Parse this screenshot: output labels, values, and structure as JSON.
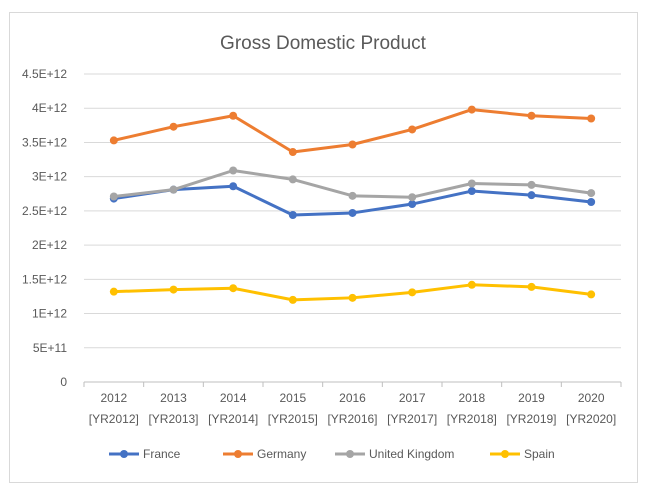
{
  "chart_data": {
    "type": "line",
    "title": "Gross Domestic Product",
    "xlabel": "",
    "ylabel": "",
    "categories": [
      [
        "2012",
        "[YR2012]"
      ],
      [
        "2013",
        "[YR2013]"
      ],
      [
        "2014",
        "[YR2014]"
      ],
      [
        "2015",
        "[YR2015]"
      ],
      [
        "2016",
        "[YR2016]"
      ],
      [
        "2017",
        "[YR2017]"
      ],
      [
        "2018",
        "[YR2018]"
      ],
      [
        "2019",
        "[YR2019]"
      ],
      [
        "2020",
        "[YR2020]"
      ]
    ],
    "ylim": [
      0,
      4500000000000.0
    ],
    "yticks": [
      {
        "value": 0,
        "label": "0"
      },
      {
        "value": 500000000000.0,
        "label": "5E+11"
      },
      {
        "value": 1000000000000.0,
        "label": "1E+12"
      },
      {
        "value": 1500000000000.0,
        "label": "1.5E+12"
      },
      {
        "value": 2000000000000.0,
        "label": "2E+12"
      },
      {
        "value": 2500000000000.0,
        "label": "2.5E+12"
      },
      {
        "value": 3000000000000.0,
        "label": "3E+12"
      },
      {
        "value": 3500000000000.0,
        "label": "3.5E+12"
      },
      {
        "value": 4000000000000.0,
        "label": "4E+12"
      },
      {
        "value": 4500000000000.0,
        "label": "4.5E+12"
      }
    ],
    "grid": true,
    "legend_position": "bottom",
    "series": [
      {
        "name": "France",
        "color": "#4472c4",
        "values": [
          2680000000000.0,
          2810000000000.0,
          2860000000000.0,
          2440000000000.0,
          2470000000000.0,
          2600000000000.0,
          2790000000000.0,
          2730000000000.0,
          2630000000000.0
        ]
      },
      {
        "name": "Germany",
        "color": "#ed7d31",
        "values": [
          3530000000000.0,
          3730000000000.0,
          3890000000000.0,
          3360000000000.0,
          3470000000000.0,
          3690000000000.0,
          3980000000000.0,
          3890000000000.0,
          3850000000000.0
        ]
      },
      {
        "name": "United Kingdom",
        "color": "#a5a5a5",
        "values": [
          2710000000000.0,
          2810000000000.0,
          3090000000000.0,
          2960000000000.0,
          2720000000000.0,
          2700000000000.0,
          2900000000000.0,
          2880000000000.0,
          2760000000000.0
        ]
      },
      {
        "name": "Spain",
        "color": "#ffc000",
        "values": [
          1320000000000.0,
          1350000000000.0,
          1370000000000.0,
          1200000000000.0,
          1230000000000.0,
          1310000000000.0,
          1420000000000.0,
          1390000000000.0,
          1280000000000.0
        ]
      }
    ]
  }
}
